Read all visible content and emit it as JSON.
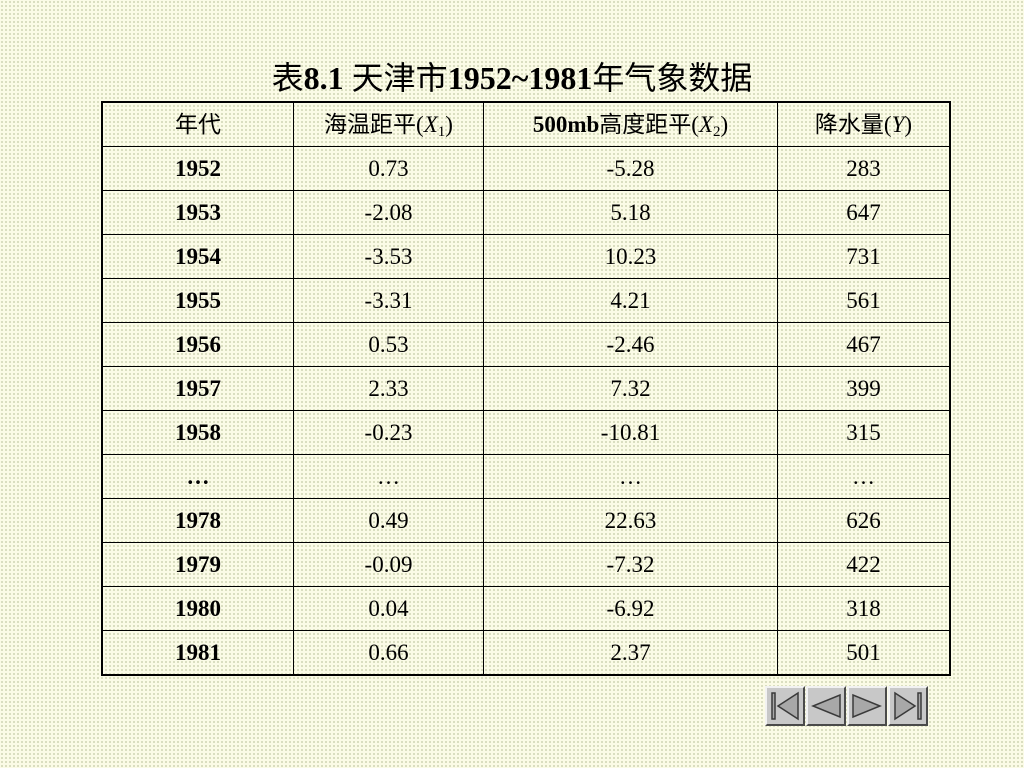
{
  "title": {
    "prefix": "表",
    "number": "8.1",
    "middle": " 天津市",
    "years": "1952~1981",
    "suffix": "年气象数据"
  },
  "table": {
    "headers": {
      "year": "年代",
      "x1_label": "海温距平(",
      "x1_var": "X",
      "x1_sub": "1",
      "x1_close": ")",
      "x2_num": "500mb",
      "x2_label": "高度距平(",
      "x2_var": "X",
      "x2_sub": "2",
      "x2_close": ")",
      "y_label": "降水量(",
      "y_var": "Y",
      "y_close": ")"
    },
    "rows": [
      {
        "year": "1952",
        "x1": "0.73",
        "x2": "-5.28",
        "y": "283"
      },
      {
        "year": "1953",
        "x1": "-2.08",
        "x2": "5.18",
        "y": "647"
      },
      {
        "year": "1954",
        "x1": "-3.53",
        "x2": "10.23",
        "y": "731"
      },
      {
        "year": "1955",
        "x1": "-3.31",
        "x2": "4.21",
        "y": "561"
      },
      {
        "year": "1956",
        "x1": "0.53",
        "x2": "-2.46",
        "y": "467"
      },
      {
        "year": "1957",
        "x1": "2.33",
        "x2": "7.32",
        "y": "399"
      },
      {
        "year": "1958",
        "x1": "-0.23",
        "x2": "-10.81",
        "y": "315"
      },
      {
        "year": "…",
        "x1": "…",
        "x2": "…",
        "y": "…"
      },
      {
        "year": "1978",
        "x1": "0.49",
        "x2": "22.63",
        "y": "626"
      },
      {
        "year": "1979",
        "x1": "-0.09",
        "x2": "-7.32",
        "y": "422"
      },
      {
        "year": "1980",
        "x1": "0.04",
        "x2": "-6.92",
        "y": "318"
      },
      {
        "year": "1981",
        "x1": "0.66",
        "x2": "2.37",
        "y": "501"
      }
    ]
  },
  "navigation": {
    "buttons": [
      "first-slide-icon",
      "previous-slide-icon",
      "next-slide-icon",
      "last-slide-icon"
    ]
  },
  "colors": {
    "background": "#fbfbe6",
    "dots": "#d2d6b6",
    "button_face": "#c8c8c8",
    "button_icon": "#a8a8a8"
  }
}
